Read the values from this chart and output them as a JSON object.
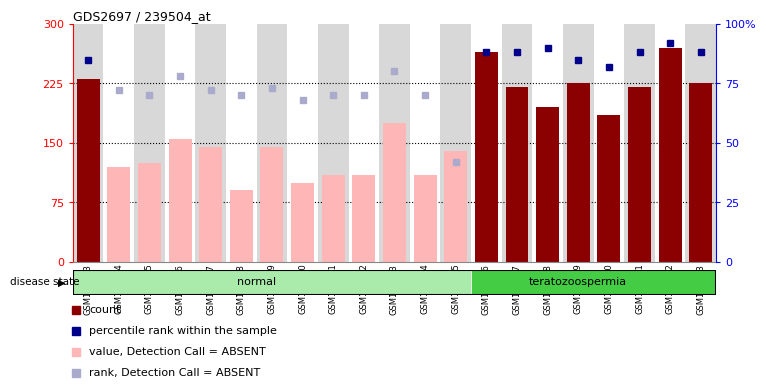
{
  "title": "GDS2697 / 239504_at",
  "samples": [
    "GSM158463",
    "GSM158464",
    "GSM158465",
    "GSM158466",
    "GSM158467",
    "GSM158468",
    "GSM158469",
    "GSM158470",
    "GSM158471",
    "GSM158472",
    "GSM158473",
    "GSM158474",
    "GSM158475",
    "GSM158476",
    "GSM158477",
    "GSM158478",
    "GSM158479",
    "GSM158480",
    "GSM158481",
    "GSM158482",
    "GSM158483"
  ],
  "bar_values": [
    230,
    120,
    125,
    155,
    145,
    90,
    145,
    100,
    110,
    110,
    175,
    110,
    140,
    265,
    220,
    195,
    225,
    185,
    220,
    270,
    225
  ],
  "bar_absent": [
    false,
    true,
    true,
    true,
    true,
    true,
    true,
    true,
    true,
    true,
    true,
    true,
    true,
    false,
    false,
    false,
    false,
    false,
    false,
    false,
    false
  ],
  "rank_values": [
    85,
    72,
    70,
    78,
    72,
    70,
    73,
    68,
    70,
    70,
    80,
    70,
    42,
    88,
    88,
    90,
    85,
    82,
    88,
    92,
    88
  ],
  "rank_absent": [
    false,
    true,
    true,
    true,
    true,
    true,
    true,
    true,
    true,
    true,
    true,
    true,
    true,
    false,
    false,
    false,
    false,
    false,
    false,
    false,
    false
  ],
  "ylim_left": [
    0,
    300
  ],
  "ylim_right": [
    0,
    100
  ],
  "yticks_left": [
    0,
    75,
    150,
    225,
    300
  ],
  "yticks_right": [
    0,
    25,
    50,
    75,
    100
  ],
  "ytick_labels_right": [
    "0",
    "25",
    "50",
    "75",
    "100%"
  ],
  "disease_groups": [
    {
      "label": "normal",
      "start": 0,
      "end": 13,
      "color": "#AAEAAA"
    },
    {
      "label": "teratozoospermia",
      "start": 13,
      "end": 21,
      "color": "#44CC44"
    }
  ],
  "bar_color_present": "#8B0000",
  "bar_color_absent": "#FFB6B6",
  "dot_color_present": "#00008B",
  "dot_color_absent": "#AAAACC",
  "bg_color_even": "#D8D8D8",
  "bg_color_odd": "#FFFFFF",
  "disease_state_label": "disease state",
  "legend_items": [
    {
      "color": "#8B0000",
      "label": "count"
    },
    {
      "color": "#00008B",
      "label": "percentile rank within the sample"
    },
    {
      "color": "#FFB6B6",
      "label": "value, Detection Call = ABSENT"
    },
    {
      "color": "#AAAACC",
      "label": "rank, Detection Call = ABSENT"
    }
  ]
}
